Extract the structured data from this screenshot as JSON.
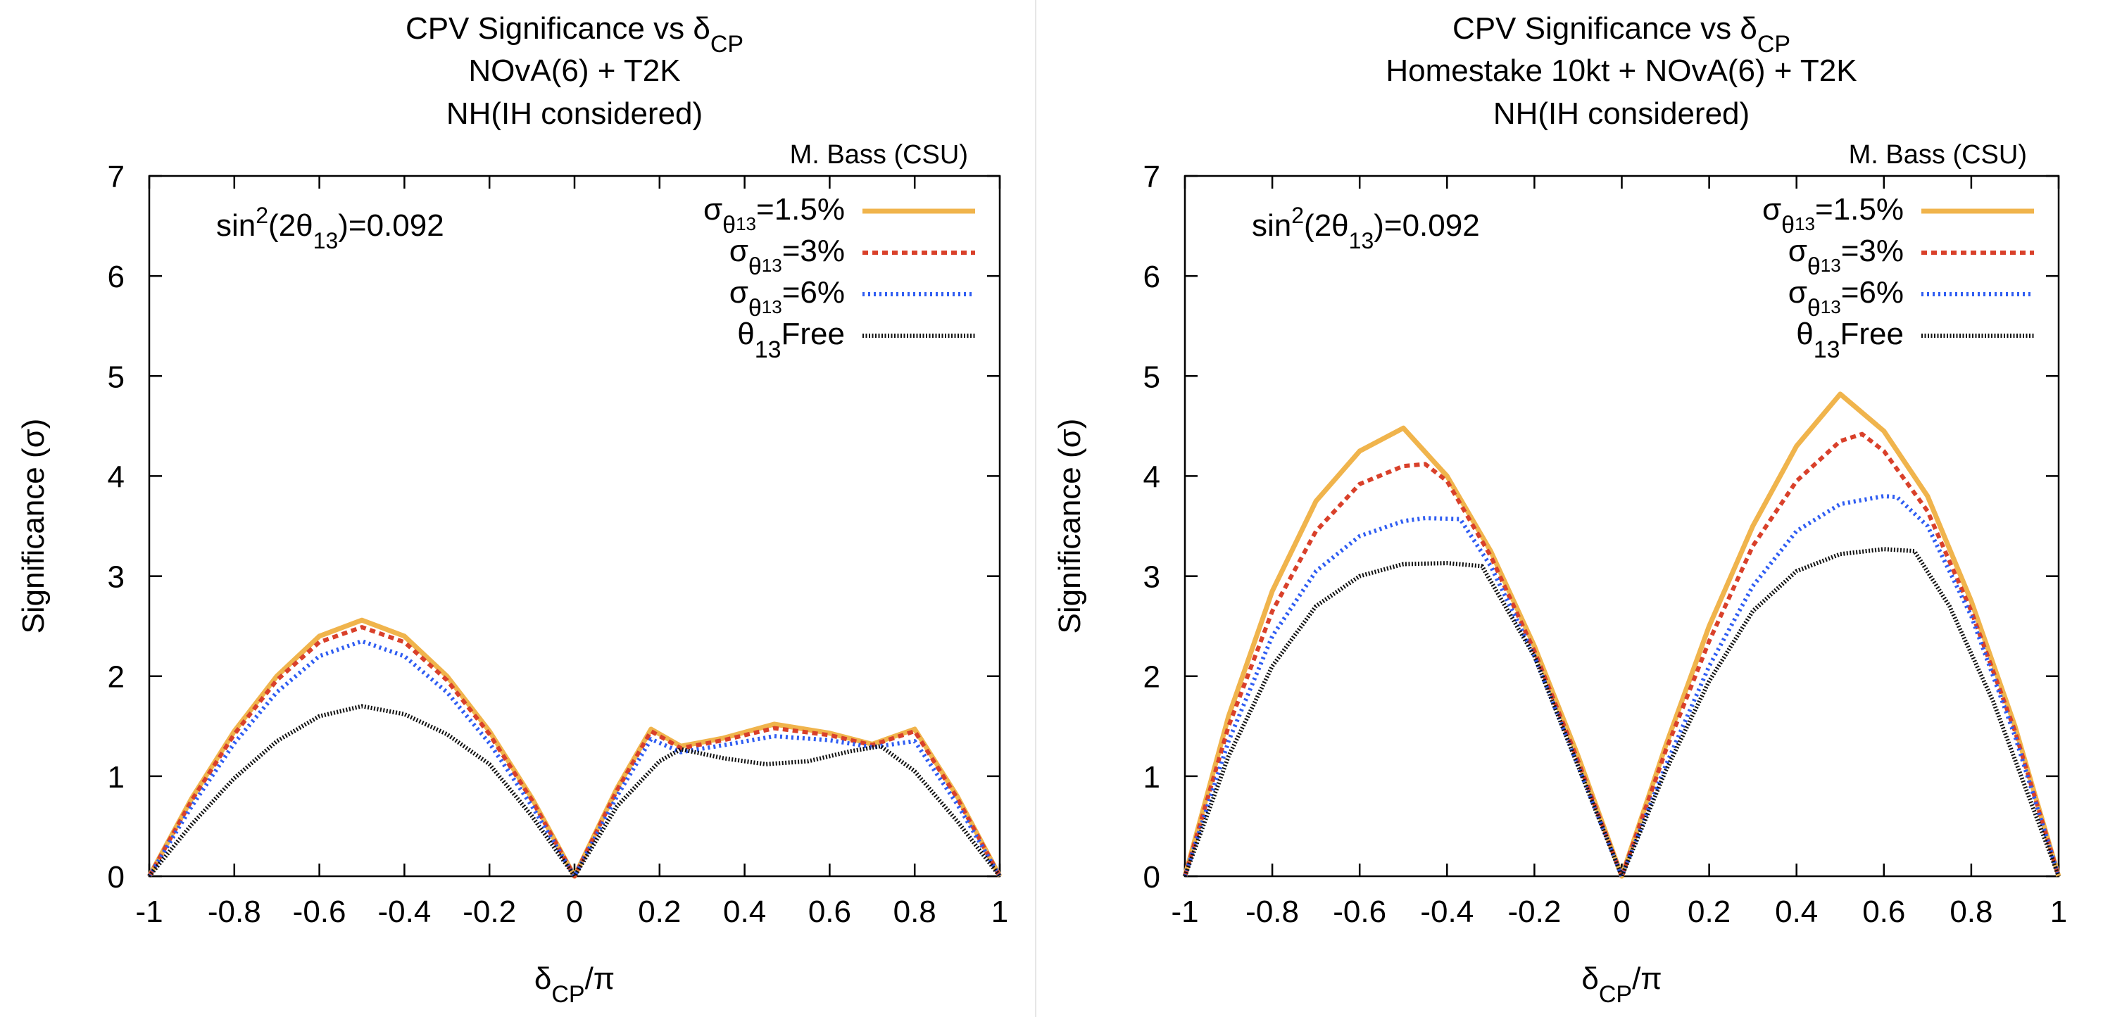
{
  "chart_data": [
    {
      "type": "line",
      "title": {
        "line1_prefix": "CPV Significance vs δ",
        "line1_sub": "CP",
        "line2": "NOvA(6) + T2K",
        "line3": "NH(IH considered)"
      },
      "credit": "M. Bass (CSU)",
      "annotation": {
        "prefix": "sin",
        "sup": "2",
        "mid": "(2θ",
        "sub": "13",
        "suffix": ")=0.092"
      },
      "xlabel": {
        "prefix": "δ",
        "sub": "CP",
        "suffix": "/π"
      },
      "ylabel": {
        "prefix": "Significance (",
        "symbol": "σ",
        "suffix": ")"
      },
      "xlim": [
        -1,
        1
      ],
      "ylim": [
        0,
        7
      ],
      "xticks": [
        -1,
        -0.8,
        -0.6,
        -0.4,
        -0.2,
        0,
        0.2,
        0.4,
        0.6,
        0.8,
        1
      ],
      "xtick_labels": [
        "-1",
        "-0.8",
        "-0.6",
        "-0.4",
        "-0.2",
        "0",
        "0.2",
        "0.4",
        "0.6",
        "0.8",
        "1"
      ],
      "yticks": [
        0,
        1,
        2,
        3,
        4,
        5,
        6,
        7
      ],
      "ytick_labels": [
        "0",
        "1",
        "2",
        "3",
        "4",
        "5",
        "6",
        "7"
      ],
      "series": [
        {
          "name": "σθ13=1.5%",
          "legend": {
            "symbol": "σ",
            "sub": "θ",
            "subsub": "13",
            "suffix": "=1.5%"
          },
          "color": "#f0b44c",
          "dash": "solid",
          "x": [
            -1,
            -0.9,
            -0.8,
            -0.7,
            -0.6,
            -0.5,
            -0.4,
            -0.3,
            -0.2,
            -0.1,
            0,
            0.1,
            0.18,
            0.25,
            0.35,
            0.47,
            0.6,
            0.7,
            0.8,
            0.9,
            1
          ],
          "y": [
            0,
            0.78,
            1.45,
            2.0,
            2.4,
            2.56,
            2.4,
            2.0,
            1.45,
            0.78,
            0,
            0.88,
            1.47,
            1.3,
            1.38,
            1.52,
            1.43,
            1.32,
            1.47,
            0.8,
            0
          ]
        },
        {
          "name": "σθ13=3%",
          "legend": {
            "symbol": "σ",
            "sub": "θ",
            "subsub": "13",
            "suffix": "=3%"
          },
          "color": "#d9402a",
          "dash": "8,6",
          "x": [
            -1,
            -0.9,
            -0.8,
            -0.7,
            -0.6,
            -0.5,
            -0.4,
            -0.3,
            -0.2,
            -0.1,
            0,
            0.1,
            0.18,
            0.25,
            0.35,
            0.47,
            0.6,
            0.7,
            0.8,
            0.9,
            1
          ],
          "y": [
            0,
            0.76,
            1.42,
            1.96,
            2.34,
            2.49,
            2.34,
            1.96,
            1.42,
            0.76,
            0,
            0.86,
            1.45,
            1.28,
            1.36,
            1.48,
            1.41,
            1.31,
            1.45,
            0.78,
            0
          ]
        },
        {
          "name": "σθ13=6%",
          "legend": {
            "symbol": "σ",
            "sub": "θ",
            "subsub": "13",
            "suffix": "=6%"
          },
          "color": "#2f5df2",
          "dash": "3,5",
          "x": [
            -1,
            -0.9,
            -0.8,
            -0.7,
            -0.6,
            -0.5,
            -0.4,
            -0.3,
            -0.2,
            -0.1,
            0,
            0.1,
            0.18,
            0.25,
            0.35,
            0.47,
            0.6,
            0.7,
            0.8,
            0.9,
            1
          ],
          "y": [
            0,
            0.7,
            1.33,
            1.84,
            2.2,
            2.35,
            2.2,
            1.84,
            1.33,
            0.7,
            0,
            0.8,
            1.37,
            1.24,
            1.31,
            1.4,
            1.36,
            1.29,
            1.35,
            0.72,
            0
          ]
        },
        {
          "name": "θ13 Free",
          "legend": {
            "symbol": "θ",
            "sub": "13",
            "subsub": "",
            "suffix": "Free"
          },
          "color": "#111111",
          "dash": "2,2.5",
          "x": [
            -1,
            -0.9,
            -0.8,
            -0.7,
            -0.6,
            -0.5,
            -0.4,
            -0.3,
            -0.2,
            -0.1,
            0,
            0.1,
            0.2,
            0.25,
            0.35,
            0.45,
            0.55,
            0.65,
            0.72,
            0.8,
            0.9,
            1
          ],
          "y": [
            0,
            0.52,
            0.98,
            1.35,
            1.6,
            1.7,
            1.62,
            1.42,
            1.12,
            0.6,
            0,
            0.7,
            1.15,
            1.27,
            1.18,
            1.12,
            1.15,
            1.25,
            1.3,
            1.05,
            0.55,
            0
          ]
        }
      ]
    },
    {
      "type": "line",
      "title": {
        "line1_prefix": "CPV Significance vs δ",
        "line1_sub": "CP",
        "line2": "Homestake 10kt + NOvA(6) + T2K",
        "line3": "NH(IH considered)"
      },
      "credit": "M. Bass (CSU)",
      "annotation": {
        "prefix": "sin",
        "sup": "2",
        "mid": "(2θ",
        "sub": "13",
        "suffix": ")=0.092"
      },
      "xlabel": {
        "prefix": "δ",
        "sub": "CP",
        "suffix": "/π"
      },
      "ylabel": {
        "prefix": "Significance (",
        "symbol": "σ",
        "suffix": ")"
      },
      "xlim": [
        -1,
        1
      ],
      "ylim": [
        0,
        7
      ],
      "xticks": [
        -1,
        -0.8,
        -0.6,
        -0.4,
        -0.2,
        0,
        0.2,
        0.4,
        0.6,
        0.8,
        1
      ],
      "xtick_labels": [
        "-1",
        "-0.8",
        "-0.6",
        "-0.4",
        "-0.2",
        "0",
        "0.2",
        "0.4",
        "0.6",
        "0.8",
        "1"
      ],
      "yticks": [
        0,
        1,
        2,
        3,
        4,
        5,
        6,
        7
      ],
      "ytick_labels": [
        "0",
        "1",
        "2",
        "3",
        "4",
        "5",
        "6",
        "7"
      ],
      "series": [
        {
          "name": "σθ13=1.5%",
          "legend": {
            "symbol": "σ",
            "sub": "θ",
            "subsub": "13",
            "suffix": "=1.5%"
          },
          "color": "#f0b44c",
          "dash": "solid",
          "x": [
            -1,
            -0.9,
            -0.8,
            -0.7,
            -0.6,
            -0.5,
            -0.4,
            -0.3,
            -0.2,
            -0.1,
            0,
            0.1,
            0.2,
            0.3,
            0.4,
            0.5,
            0.6,
            0.7,
            0.8,
            0.9,
            1
          ],
          "y": [
            0,
            1.6,
            2.85,
            3.75,
            4.25,
            4.48,
            4.0,
            3.25,
            2.3,
            1.2,
            0,
            1.3,
            2.5,
            3.5,
            4.3,
            4.82,
            4.45,
            3.8,
            2.75,
            1.5,
            0
          ]
        },
        {
          "name": "σθ13=3%",
          "legend": {
            "symbol": "σ",
            "sub": "θ",
            "subsub": "13",
            "suffix": "=3%"
          },
          "color": "#d9402a",
          "dash": "8,6",
          "x": [
            -1,
            -0.9,
            -0.8,
            -0.7,
            -0.6,
            -0.5,
            -0.45,
            -0.4,
            -0.3,
            -0.2,
            -0.1,
            0,
            0.1,
            0.2,
            0.3,
            0.4,
            0.5,
            0.55,
            0.6,
            0.7,
            0.8,
            0.9,
            1
          ],
          "y": [
            0,
            1.5,
            2.65,
            3.45,
            3.92,
            4.1,
            4.12,
            3.95,
            3.2,
            2.25,
            1.15,
            0,
            1.25,
            2.35,
            3.3,
            3.95,
            4.35,
            4.42,
            4.25,
            3.65,
            2.65,
            1.45,
            0
          ]
        },
        {
          "name": "σθ13=6%",
          "legend": {
            "symbol": "σ",
            "sub": "θ",
            "subsub": "13",
            "suffix": "=6%"
          },
          "color": "#2f5df2",
          "dash": "3,5",
          "x": [
            -1,
            -0.9,
            -0.8,
            -0.7,
            -0.6,
            -0.5,
            -0.45,
            -0.37,
            -0.3,
            -0.2,
            -0.1,
            0,
            0.1,
            0.2,
            0.3,
            0.4,
            0.5,
            0.6,
            0.63,
            0.7,
            0.8,
            0.9,
            1
          ],
          "y": [
            0,
            1.35,
            2.4,
            3.05,
            3.4,
            3.55,
            3.58,
            3.57,
            3.1,
            2.2,
            1.1,
            0,
            1.1,
            2.1,
            2.9,
            3.45,
            3.72,
            3.8,
            3.79,
            3.5,
            2.6,
            1.4,
            0
          ]
        },
        {
          "name": "θ13 Free",
          "legend": {
            "symbol": "θ",
            "sub": "13",
            "subsub": "",
            "suffix": "Free"
          },
          "color": "#111111",
          "dash": "2,2.5",
          "x": [
            -1,
            -0.9,
            -0.8,
            -0.7,
            -0.6,
            -0.5,
            -0.4,
            -0.32,
            -0.2,
            -0.1,
            0,
            0.1,
            0.2,
            0.3,
            0.4,
            0.5,
            0.6,
            0.67,
            0.75,
            0.85,
            1
          ],
          "y": [
            0,
            1.2,
            2.1,
            2.7,
            3.0,
            3.12,
            3.13,
            3.1,
            2.2,
            1.1,
            0,
            1.05,
            1.95,
            2.65,
            3.05,
            3.22,
            3.27,
            3.25,
            2.7,
            1.75,
            0
          ]
        }
      ]
    }
  ]
}
